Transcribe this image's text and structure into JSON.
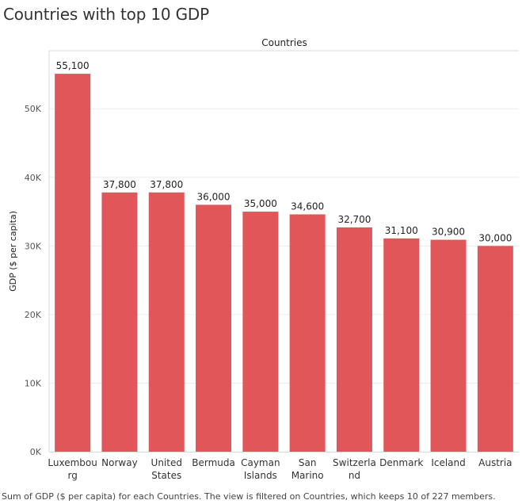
{
  "title": "Countries with top 10 GDP",
  "caption": "Sum of GDP ($ per capita) for each Countries. The view is filtered on Countries, which keeps 10 of 227 members.",
  "chart_data": {
    "type": "bar",
    "title": "Countries with top 10 GDP",
    "xlabel": "Countries",
    "ylabel": "GDP ($ per capita)",
    "categories": [
      [
        "Luxembou",
        "rg"
      ],
      [
        "Norway"
      ],
      [
        "United",
        "States"
      ],
      [
        "Bermuda"
      ],
      [
        "Cayman",
        "Islands"
      ],
      [
        "San",
        "Marino"
      ],
      [
        "Switzerla",
        "nd"
      ],
      [
        "Denmark"
      ],
      [
        "Iceland"
      ],
      [
        "Austria"
      ]
    ],
    "values": [
      55100,
      37800,
      37800,
      36000,
      35000,
      34600,
      32700,
      31100,
      30900,
      30000
    ],
    "value_labels": [
      "55,100",
      "37,800",
      "37,800",
      "36,000",
      "35,000",
      "34,600",
      "32,700",
      "31,100",
      "30,900",
      "30,000"
    ],
    "yticks": [
      0,
      10000,
      20000,
      30000,
      40000,
      50000
    ],
    "ytick_labels": [
      "0K",
      "10K",
      "20K",
      "30K",
      "40K",
      "50K"
    ],
    "ylim": [
      0,
      58000
    ],
    "bar_color": "#e15759",
    "grid": true
  }
}
